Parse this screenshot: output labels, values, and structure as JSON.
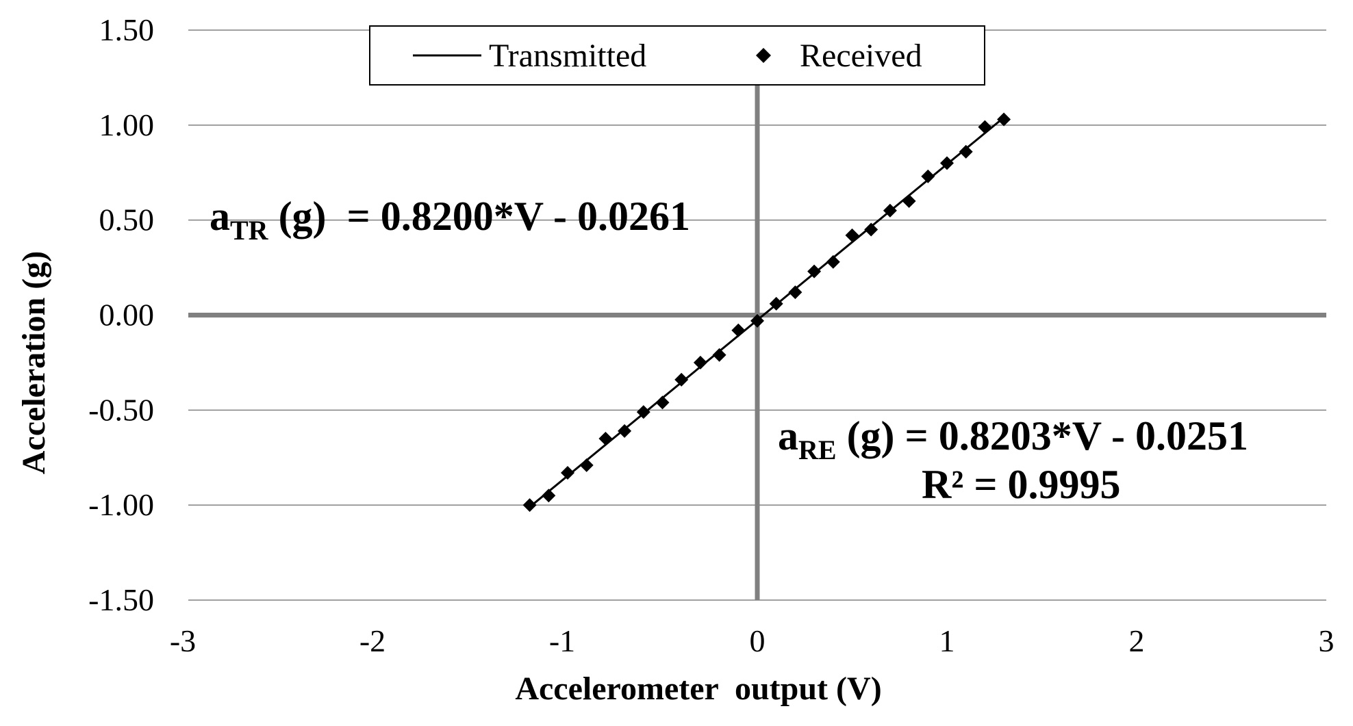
{
  "chart_data": {
    "type": "scatter",
    "xlabel": "Accelerometer  output (V)",
    "ylabel": "Acceleration (g)",
    "xlim": [
      -3,
      3
    ],
    "ylim": [
      -1.5,
      1.5
    ],
    "x_ticks": [
      -3,
      -2,
      -1,
      0,
      1,
      2,
      3
    ],
    "x_tick_labels": [
      "-3",
      "-2",
      "-1",
      "0",
      "1",
      "2",
      "3"
    ],
    "y_ticks": [
      1.5,
      1.0,
      0.5,
      0.0,
      -0.5,
      -1.0,
      -1.5
    ],
    "y_tick_labels": [
      "1.50",
      "1.00",
      "0.50",
      "0.00",
      "-0.50",
      "-1.00",
      "-1.50"
    ],
    "grid": "horizontal",
    "legend_position": "top-center",
    "series": [
      {
        "name": "Transmitted",
        "kind": "line",
        "color": "#000000",
        "x": [
          -1.2,
          1.3
        ],
        "y": [
          -1.0101,
          1.0399
        ]
      },
      {
        "name": "Received",
        "kind": "diamond-markers",
        "color": "#000000",
        "x": [
          -1.2,
          -1.1,
          -1.0,
          -0.9,
          -0.8,
          -0.7,
          -0.6,
          -0.5,
          -0.4,
          -0.3,
          -0.2,
          -0.1,
          0.0,
          0.1,
          0.2,
          0.3,
          0.4,
          0.5,
          0.6,
          0.7,
          0.8,
          0.9,
          1.0,
          1.1,
          1.2,
          1.3
        ],
        "y": [
          -1.0,
          -0.95,
          -0.83,
          -0.79,
          -0.65,
          -0.61,
          -0.51,
          -0.46,
          -0.34,
          -0.25,
          -0.21,
          -0.08,
          -0.03,
          0.06,
          0.12,
          0.23,
          0.28,
          0.42,
          0.45,
          0.55,
          0.6,
          0.73,
          0.8,
          0.86,
          0.99,
          1.03
        ]
      }
    ],
    "annotations": {
      "transmitted_eq": {
        "base": "a",
        "sub": "TR",
        "rest": " (g)  = 0.8200*V - 0.0261"
      },
      "received_eq": {
        "base": "a",
        "sub": "RE",
        "rest": " (g) = 0.8203*V - 0.0251"
      },
      "r_squared": "R² = 0.9995"
    }
  },
  "colors": {
    "gridline": "#808080",
    "zero_axis": "#808080",
    "marker": "#000000",
    "line": "#000000"
  }
}
